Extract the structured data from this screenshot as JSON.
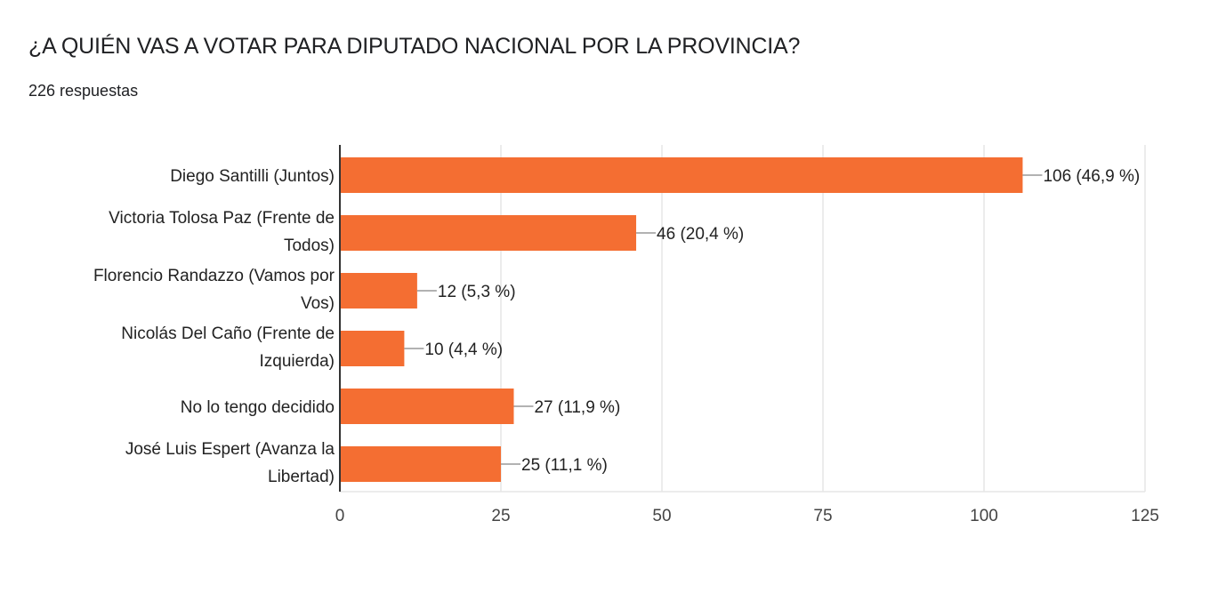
{
  "header": {
    "title": "¿A QUIÉN VAS A VOTAR PARA DIPUTADO NACIONAL POR LA PROVINCIA?",
    "responses": "226 respuestas"
  },
  "chart_data": {
    "type": "bar",
    "orientation": "horizontal",
    "title": "¿A QUIÉN VAS A VOTAR PARA DIPUTADO NACIONAL POR LA PROVINCIA?",
    "categories": [
      [
        "Diego Santilli (Juntos)"
      ],
      [
        "Victoria Tolosa Paz (Frente de",
        "Todos)"
      ],
      [
        "Florencio Randazzo (Vamos por",
        "Vos)"
      ],
      [
        "Nicolás Del Caño (Frente de",
        "Izquierda)"
      ],
      [
        "No lo tengo decidido"
      ],
      [
        "José Luis Espert (Avanza la",
        "Libertad)"
      ]
    ],
    "values": [
      106,
      46,
      12,
      10,
      27,
      25
    ],
    "data_labels": [
      "106 (46,9 %)",
      "46 (20,4 %)",
      "12 (5,3 %)",
      "10 (4,4 %)",
      "27 (11,9 %)",
      "25 (11,1 %)"
    ],
    "xlim": [
      0,
      125
    ],
    "xticks": [
      "0",
      "25",
      "50",
      "75",
      "100",
      "125"
    ],
    "xtick_values": [
      0,
      25,
      50,
      75,
      100,
      125
    ],
    "grid": true,
    "bar_color": "#f46e32"
  }
}
